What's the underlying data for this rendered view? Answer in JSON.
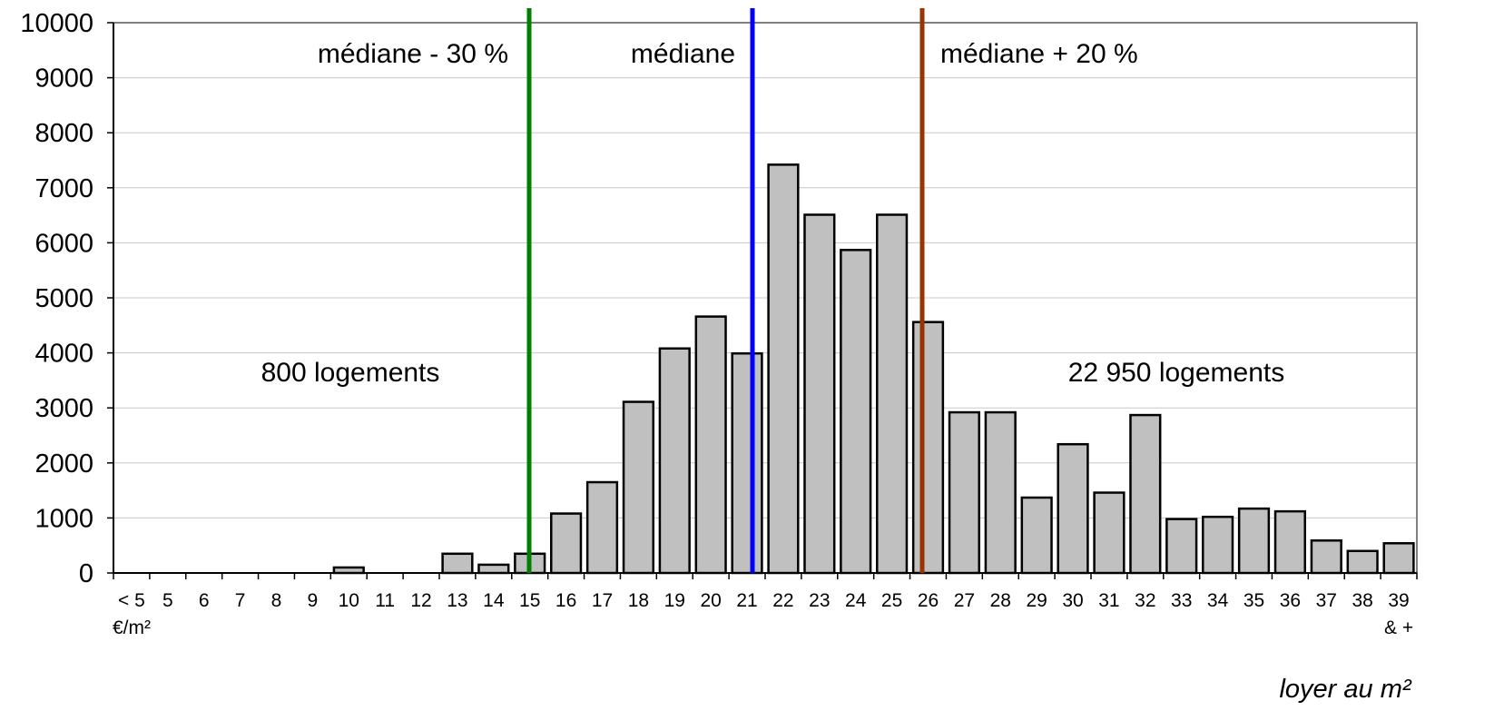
{
  "chart_data": {
    "type": "bar",
    "title": "",
    "xlabel": "loyer au m²",
    "ylabel": "",
    "ylim": [
      0,
      10000
    ],
    "yticks": [
      "0",
      "1000",
      "2000",
      "3000",
      "4000",
      "5000",
      "6000",
      "7000",
      "8000",
      "9000",
      "10000"
    ],
    "grid": true,
    "categories": [
      "< 5 €/m²",
      "5",
      "6",
      "7",
      "8",
      "9",
      "10",
      "11",
      "12",
      "13",
      "14",
      "15",
      "16",
      "17",
      "18",
      "19",
      "20",
      "21",
      "22",
      "23",
      "24",
      "25",
      "26",
      "27",
      "28",
      "29",
      "30",
      "31",
      "32",
      "33",
      "34",
      "35",
      "36",
      "37",
      "38",
      "39 & +"
    ],
    "series": [
      {
        "values": [
          0,
          0,
          0,
          0,
          0,
          0,
          100,
          0,
          0,
          350,
          150,
          350,
          1080,
          1650,
          3110,
          4080,
          4660,
          3990,
          7420,
          6510,
          5870,
          6510,
          4560,
          2920,
          2920,
          1370,
          2340,
          1460,
          2870,
          980,
          1020,
          1170,
          1120,
          590,
          400,
          540
        ],
        "color": "#c0c0c0"
      }
    ],
    "reference_lines": [
      {
        "label": "médiane - 30 %",
        "color": "#008000"
      },
      {
        "label": "médiane",
        "color": "#0000ff"
      },
      {
        "label": "médiane + 20 %",
        "color": "#993300"
      }
    ],
    "annotations": [
      "800 logements",
      "22 950 logements"
    ]
  }
}
